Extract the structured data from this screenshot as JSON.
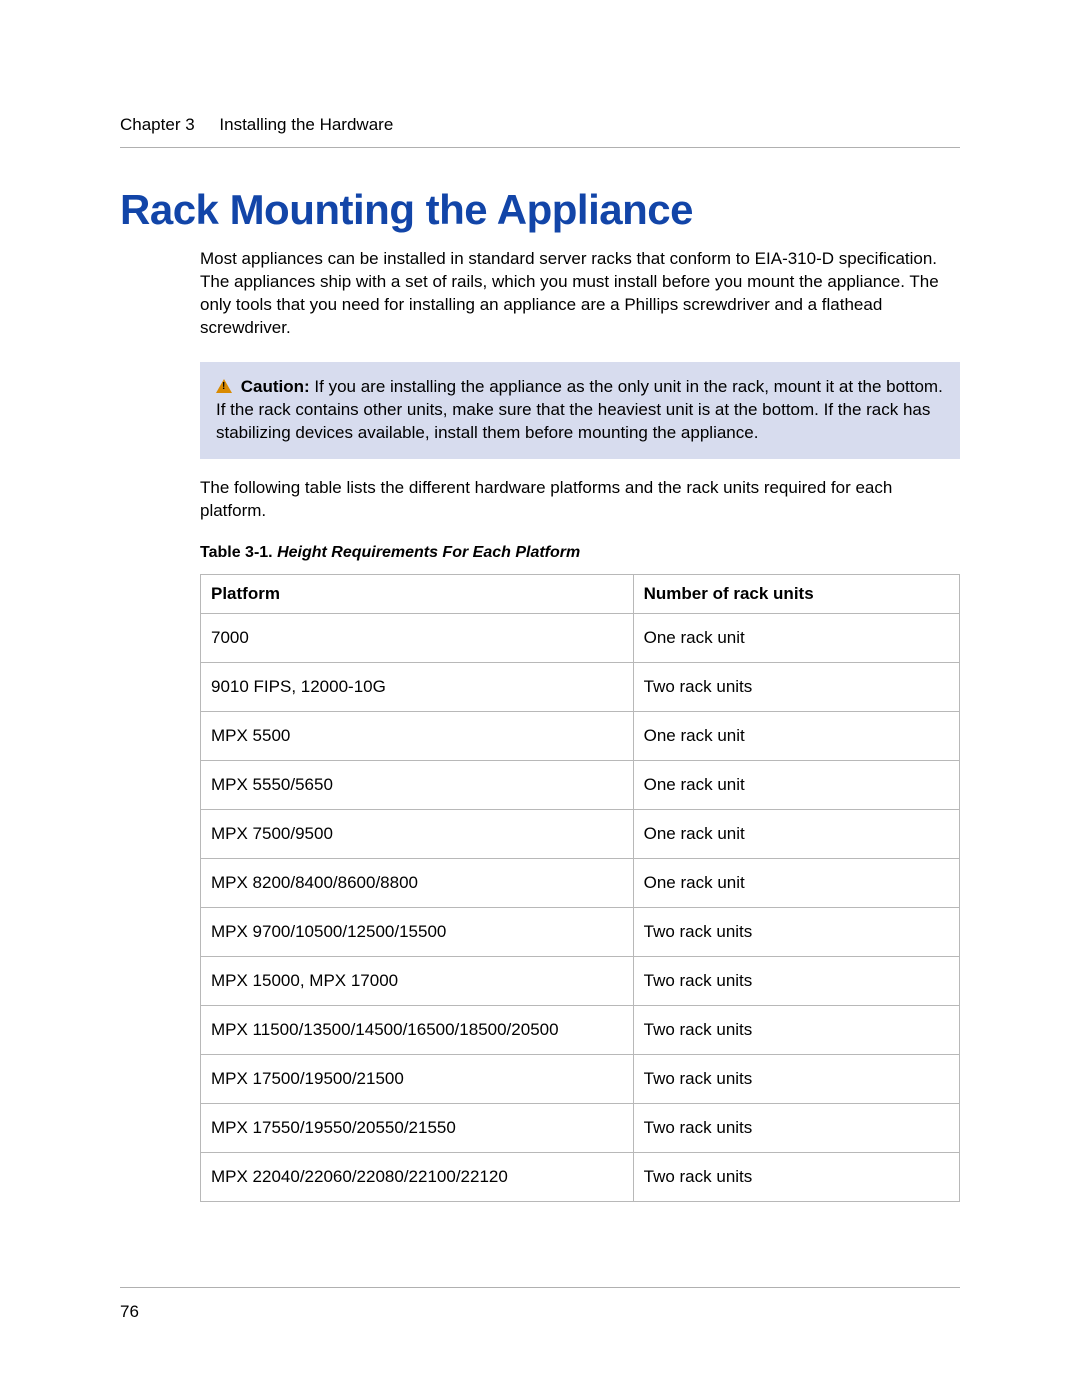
{
  "header": {
    "chapter": "Chapter 3",
    "title": "Installing the Hardware"
  },
  "main": {
    "heading": "Rack Mounting the Appliance",
    "intro": "Most appliances can be installed in standard server racks that conform to EIA-310-D specification. The appliances ship with a set of rails, which you must install before you mount the appliance. The only tools that you need for installing an appliance are a Phillips screwdriver and a flathead screwdriver.",
    "caution": {
      "label": "Caution:",
      "text": " If you are installing the appliance as the only unit in the rack, mount it at the bottom. If the rack contains other units, make sure that the heaviest unit is at the bottom. If the rack has stabilizing devices available, install them before mounting the appliance."
    },
    "followup": "The following table lists the different hardware platforms and the rack units required for each platform.",
    "table": {
      "caption_prefix": "Table 3-1. ",
      "caption_title": "Height Requirements For Each Platform",
      "columns": [
        "Platform",
        "Number of rack units"
      ],
      "rows": [
        [
          "7000",
          "One rack unit"
        ],
        [
          "9010 FIPS, 12000-10G",
          "Two rack units"
        ],
        [
          "MPX 5500",
          "One rack unit"
        ],
        [
          "MPX 5550/5650",
          "One rack unit"
        ],
        [
          "MPX 7500/9500",
          "One rack unit"
        ],
        [
          "MPX 8200/8400/8600/8800",
          "One rack unit"
        ],
        [
          "MPX 9700/10500/12500/15500",
          "Two rack units"
        ],
        [
          "MPX 15000, MPX 17000",
          "Two rack units"
        ],
        [
          "MPX 11500/13500/14500/16500/18500/20500",
          "Two rack units"
        ],
        [
          "MPX 17500/19500/21500",
          "Two rack units"
        ],
        [
          "MPX 17550/19550/20550/21550",
          "Two rack units"
        ],
        [
          "MPX 22040/22060/22080/22100/22120",
          "Two rack units"
        ]
      ]
    }
  },
  "footer": {
    "page_number": "76"
  },
  "colors": {
    "heading_color": "#1245a8",
    "caution_bg": "#d7dcee",
    "border_color": "#b8b8b8",
    "rule_color": "#b0b0b0",
    "caution_icon_color": "#d98a00"
  }
}
